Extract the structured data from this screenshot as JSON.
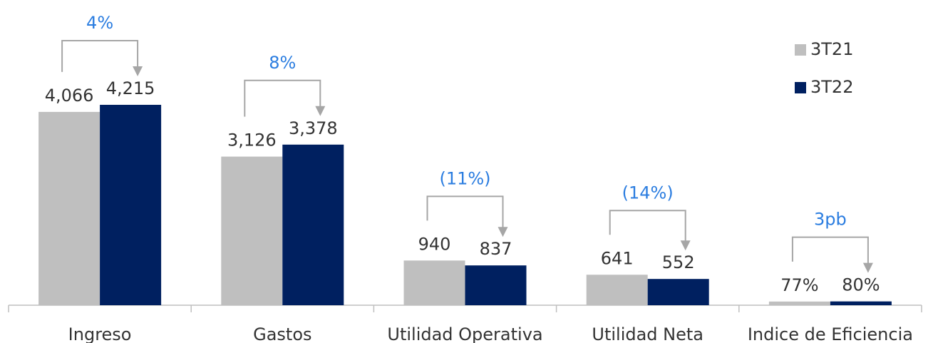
{
  "chart_data": {
    "type": "bar",
    "categories": [
      "Ingreso",
      "Gastos",
      "Utilidad Operativa",
      "Utilidad Neta",
      "Indice de Eficiencia"
    ],
    "series": [
      {
        "name": "3T21",
        "color": "#bfbfbf",
        "values": [
          4066,
          3126,
          940,
          641,
          77
        ],
        "value_labels": [
          "4,066",
          "3,126",
          "940",
          "641",
          "77%"
        ]
      },
      {
        "name": "3T22",
        "color": "#002060",
        "values": [
          4215,
          3378,
          837,
          552,
          80
        ],
        "value_labels": [
          "4,215",
          "3,378",
          "837",
          "552",
          "80%"
        ]
      }
    ],
    "annotations": [
      "4%",
      "8%",
      "(11%)",
      "(14%)",
      "3pb"
    ],
    "legend": "upper right"
  }
}
